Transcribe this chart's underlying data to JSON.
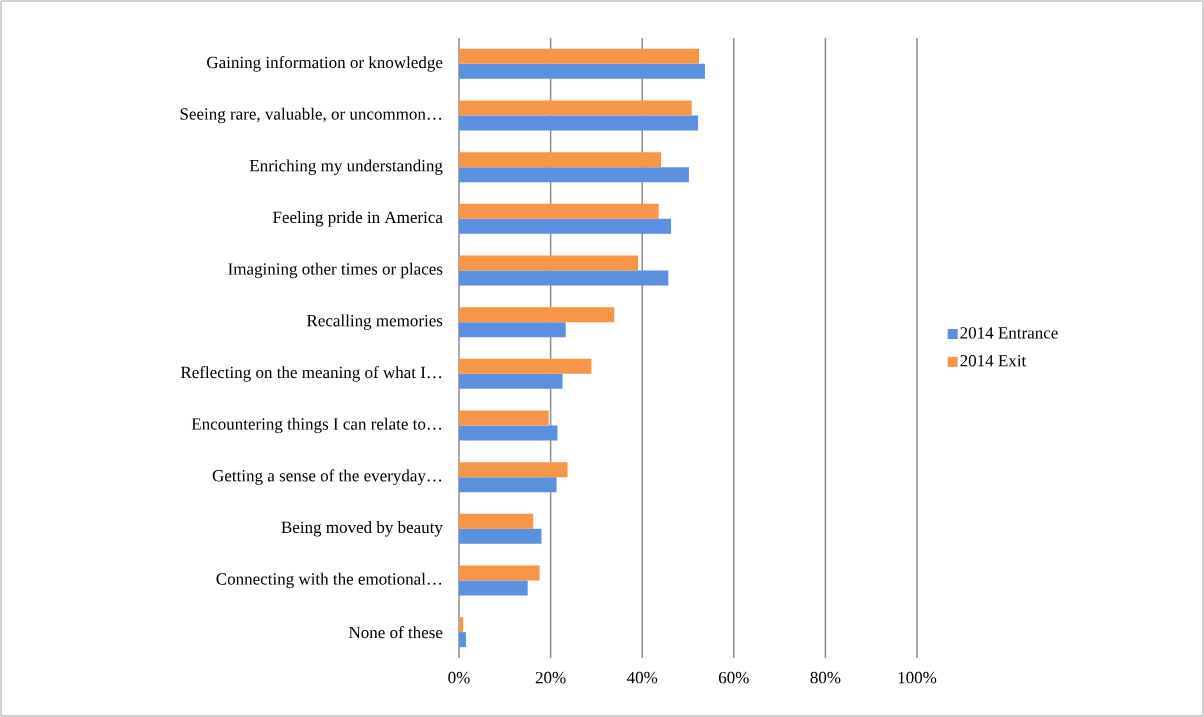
{
  "chart_data": {
    "type": "bar",
    "orientation": "horizontal",
    "categories": [
      "Gaining information or knowledge",
      "Seeing rare, valuable, or uncommon…",
      "Enriching my understanding",
      "Feeling pride in America",
      "Imagining other times or places",
      "Recalling memories",
      "Reflecting on the meaning of what I…",
      "Encountering things I can relate to…",
      "Getting a sense of the everyday…",
      "Being moved by beauty",
      "Connecting with the emotional…",
      "None of these"
    ],
    "series": [
      {
        "name": "2014 Entrance",
        "color": "#5b8fdf",
        "values": [
          53.7,
          52.2,
          50.2,
          46.3,
          45.7,
          23.3,
          22.6,
          21.5,
          21.3,
          18.0,
          15.0,
          1.5
        ]
      },
      {
        "name": "2014 Exit",
        "color": "#f79646",
        "values": [
          52.4,
          50.8,
          44.1,
          43.6,
          39.1,
          33.9,
          28.9,
          19.6,
          23.7,
          16.2,
          17.6,
          0.9
        ]
      }
    ],
    "xlim": [
      0,
      100
    ],
    "xticks": [
      {
        "value": 0,
        "label": "0%"
      },
      {
        "value": 20,
        "label": "20%"
      },
      {
        "value": 40,
        "label": "40%"
      },
      {
        "value": 60,
        "label": "60%"
      },
      {
        "value": 80,
        "label": "80%"
      },
      {
        "value": 100,
        "label": "100%"
      }
    ],
    "grid": "x",
    "legend": "right"
  }
}
